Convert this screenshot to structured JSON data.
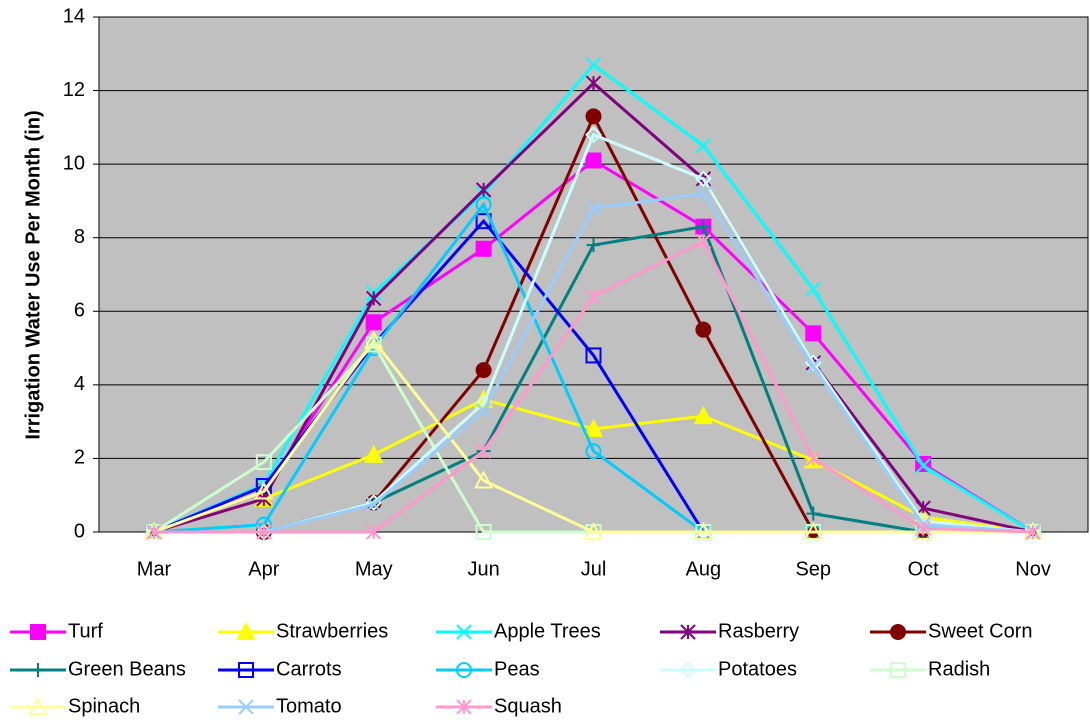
{
  "chart_data": {
    "type": "line",
    "y_label": "Irrigation Water Use Per Month (in)",
    "categories": [
      "Mar",
      "Apr",
      "May",
      "Jun",
      "Jul",
      "Aug",
      "Sep",
      "Oct",
      "Nov"
    ],
    "ylim": [
      0,
      14
    ],
    "yticks": [
      0,
      2,
      4,
      6,
      8,
      10,
      12,
      14
    ],
    "grid": true,
    "series": [
      {
        "name": "Turf",
        "color": "#ff00ff",
        "marker": "square",
        "values": [
          0,
          1.1,
          5.7,
          7.7,
          10.1,
          8.3,
          5.4,
          1.85,
          0
        ]
      },
      {
        "name": "Strawberries",
        "color": "#ffff00",
        "marker": "triangle",
        "values": [
          0,
          0.9,
          2.1,
          3.6,
          2.8,
          3.15,
          1.95,
          0.4,
          0
        ]
      },
      {
        "name": "Apple Trees",
        "color": "#00ffff",
        "marker": "x",
        "values": [
          0,
          1.3,
          6.5,
          9.2,
          12.7,
          10.5,
          6.6,
          1.8,
          0
        ]
      },
      {
        "name": "Rasberry",
        "color": "#800080",
        "marker": "star",
        "values": [
          0,
          0.9,
          6.35,
          9.3,
          12.2,
          9.6,
          4.6,
          0.65,
          0
        ]
      },
      {
        "name": "Sweet Corn",
        "color": "#800000",
        "marker": "circle",
        "values": [
          0,
          0,
          0.8,
          4.4,
          11.3,
          5.5,
          0,
          0,
          0
        ]
      },
      {
        "name": "Green Beans",
        "color": "#008080",
        "marker": "plus",
        "values": [
          0,
          0,
          0.8,
          2.2,
          7.8,
          8.3,
          0.5,
          0,
          0
        ]
      },
      {
        "name": "Carrots",
        "color": "#0000ff",
        "marker": "square-open",
        "values": [
          0,
          1.25,
          5.1,
          8.45,
          4.8,
          0,
          0,
          0,
          0
        ]
      },
      {
        "name": "Peas",
        "color": "#00ccff",
        "marker": "circle-open",
        "values": [
          0,
          0.2,
          5.0,
          8.9,
          2.2,
          0,
          0,
          0,
          0
        ]
      },
      {
        "name": "Potatoes",
        "color": "#ccffff",
        "marker": "diamond-open",
        "values": [
          0,
          0,
          0.8,
          3.5,
          10.8,
          9.6,
          4.6,
          0.3,
          0
        ]
      },
      {
        "name": "Radish",
        "color": "#ccffcc",
        "marker": "square-open",
        "values": [
          0,
          1.9,
          5.1,
          0,
          0,
          0,
          0,
          0,
          0
        ]
      },
      {
        "name": "Spinach",
        "color": "#ffff99",
        "marker": "triangle-open",
        "values": [
          0,
          1.1,
          5.2,
          1.4,
          0,
          0,
          0,
          0,
          0
        ]
      },
      {
        "name": "Tomato",
        "color": "#99ccff",
        "marker": "x",
        "values": [
          0,
          0,
          0.75,
          3.3,
          8.8,
          9.2,
          4.5,
          0.2,
          0
        ]
      },
      {
        "name": "Squash",
        "color": "#ff99cc",
        "marker": "star",
        "values": [
          0,
          0,
          0,
          2.2,
          6.4,
          7.9,
          2.0,
          0.1,
          0
        ]
      }
    ]
  }
}
